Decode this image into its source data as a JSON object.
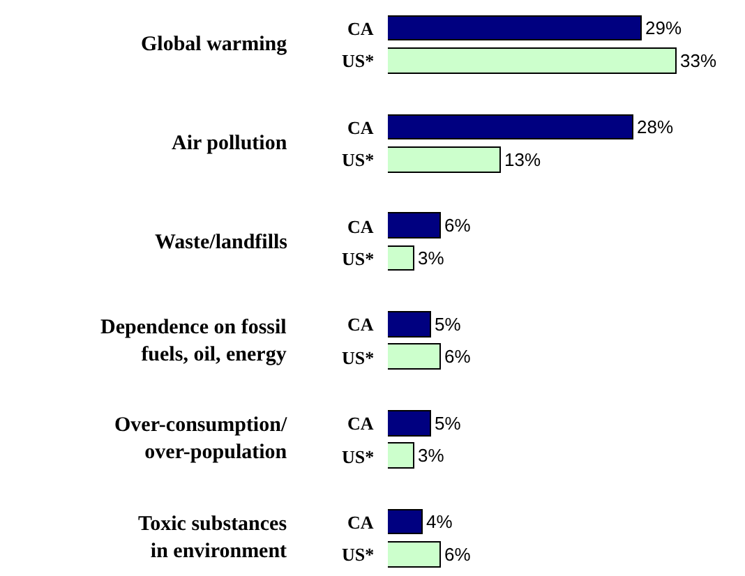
{
  "chart_data": {
    "type": "bar",
    "orientation": "horizontal",
    "categories": [
      "Global warming",
      "Air pollution",
      "Waste/landfills",
      "Dependence on fossil\nfuels, oil, energy",
      "Over-consumption/\nover-population",
      "Toxic substances\nin environment"
    ],
    "series": [
      {
        "name": "CA",
        "color": "#000080",
        "values": [
          29,
          28,
          6,
          5,
          5,
          4
        ],
        "value_labels": [
          "29%",
          "28%",
          "6%",
          "5%",
          "5%",
          "4%"
        ]
      },
      {
        "name": "US*",
        "color": "#ccffcc",
        "values": [
          33,
          13,
          3,
          6,
          3,
          6
        ],
        "value_labels": [
          "33%",
          "13%",
          "3%",
          "6%",
          "3%",
          "6%"
        ]
      }
    ]
  }
}
